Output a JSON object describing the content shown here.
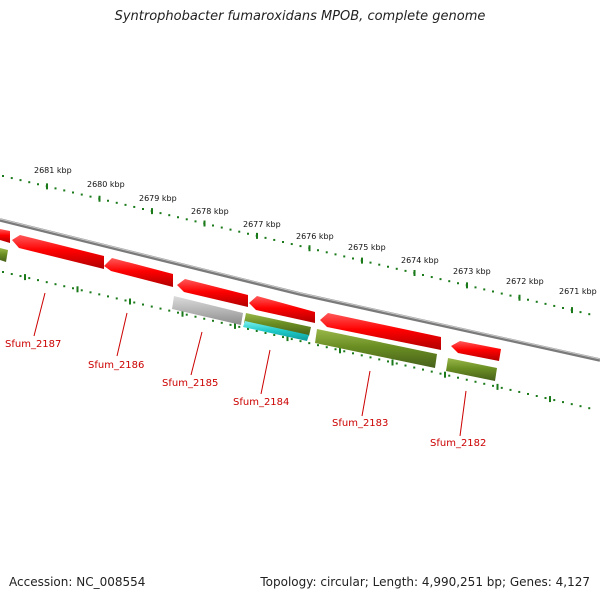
{
  "title": "Syntrophobacter fumaroxidans MPOB, complete genome",
  "footer": {
    "accession": "Accession: NC_008554",
    "summary": "Topology: circular; Length: 4,990,251 bp; Genes: 4,127"
  },
  "colors": {
    "backbone": "#7a7a7a",
    "tick": "#1a7a1a",
    "gene_red": "#ff0000",
    "gene_olive": "#6b8e23",
    "gene_gray": "#b5b5b5",
    "gene_cyan": "#1ec8c8",
    "label": "#cc0000"
  },
  "ruler": [
    {
      "label": "2681 kbp"
    },
    {
      "label": "2680 kbp"
    },
    {
      "label": "2679 kbp"
    },
    {
      "label": "2678 kbp"
    },
    {
      "label": "2677 kbp"
    },
    {
      "label": "2676 kbp"
    },
    {
      "label": "2675 kbp"
    },
    {
      "label": "2674 kbp"
    },
    {
      "label": "2673 kbp"
    },
    {
      "label": "2672 kbp"
    },
    {
      "label": "2671 kbp"
    }
  ],
  "gene_labels": [
    "Sfum_2187",
    "Sfum_2186",
    "Sfum_2185",
    "Sfum_2184",
    "Sfum_2183",
    "Sfum_2182"
  ]
}
